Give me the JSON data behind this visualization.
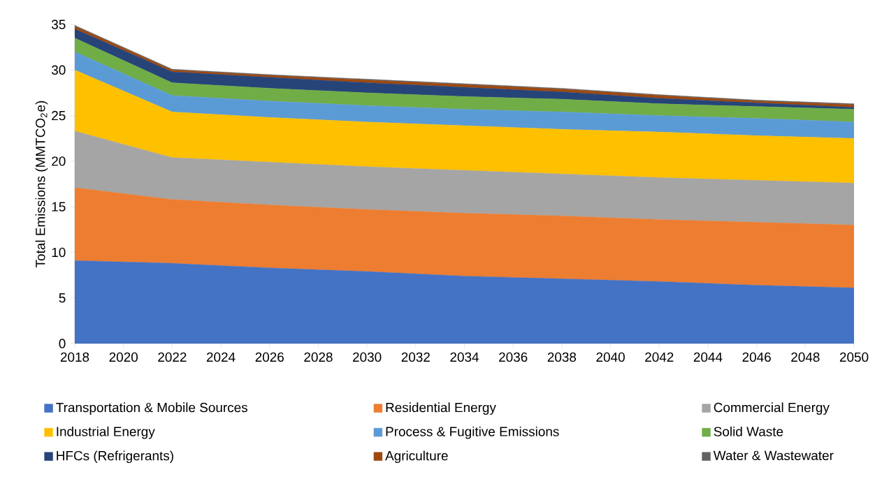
{
  "chart_data": {
    "type": "area",
    "stacked": true,
    "ylabel": "Total Emissions (MMTCO$_{2}$e)",
    "x": [
      2018,
      2022,
      2026,
      2030,
      2034,
      2038,
      2042,
      2046,
      2050
    ],
    "xlim": [
      2018,
      2050
    ],
    "xticks": [
      2018,
      2020,
      2022,
      2024,
      2026,
      2028,
      2030,
      2032,
      2034,
      2036,
      2038,
      2040,
      2042,
      2044,
      2046,
      2048,
      2050
    ],
    "ylim": [
      0,
      35
    ],
    "yticks": [
      0,
      5,
      10,
      15,
      20,
      25,
      30,
      35
    ],
    "grid": false,
    "legend": "bottom",
    "series": [
      {
        "name": "Transportation & Mobile Sources",
        "color": "#4472c4",
        "values": [
          9.1,
          8.8,
          8.3,
          7.9,
          7.4,
          7.1,
          6.8,
          6.4,
          6.1
        ]
      },
      {
        "name": "Residential Energy",
        "color": "#ed7d31",
        "values": [
          8.0,
          7.0,
          6.9,
          6.8,
          6.9,
          6.9,
          6.8,
          6.9,
          6.9
        ]
      },
      {
        "name": "Commercial Energy",
        "color": "#a5a5a5",
        "values": [
          6.2,
          4.6,
          4.7,
          4.7,
          4.7,
          4.6,
          4.6,
          4.6,
          4.6
        ]
      },
      {
        "name": "Industrial Energy",
        "color": "#ffc000",
        "values": [
          6.7,
          5.0,
          4.9,
          4.9,
          4.9,
          4.9,
          5.0,
          4.9,
          4.9
        ]
      },
      {
        "name": "Process & Fugitive Emissions",
        "color": "#5b9bd5",
        "values": [
          2.0,
          1.8,
          1.8,
          1.8,
          1.8,
          1.9,
          1.8,
          1.9,
          1.8
        ]
      },
      {
        "name": "Solid Waste",
        "color": "#70ad47",
        "values": [
          1.5,
          1.4,
          1.4,
          1.4,
          1.4,
          1.4,
          1.3,
          1.3,
          1.4
        ]
      },
      {
        "name": "HFCs (Refrigerants)",
        "color": "#264478",
        "values": [
          1.0,
          1.2,
          1.2,
          1.1,
          1.0,
          0.8,
          0.6,
          0.4,
          0.2
        ]
      },
      {
        "name": "Agriculture",
        "color": "#9e480e",
        "values": [
          0.3,
          0.2,
          0.2,
          0.3,
          0.3,
          0.3,
          0.3,
          0.2,
          0.3
        ]
      },
      {
        "name": "Water & Wastewater",
        "color": "#636363",
        "values": [
          0.1,
          0.1,
          0.1,
          0.1,
          0.1,
          0.1,
          0.1,
          0.1,
          0.1
        ]
      }
    ]
  }
}
